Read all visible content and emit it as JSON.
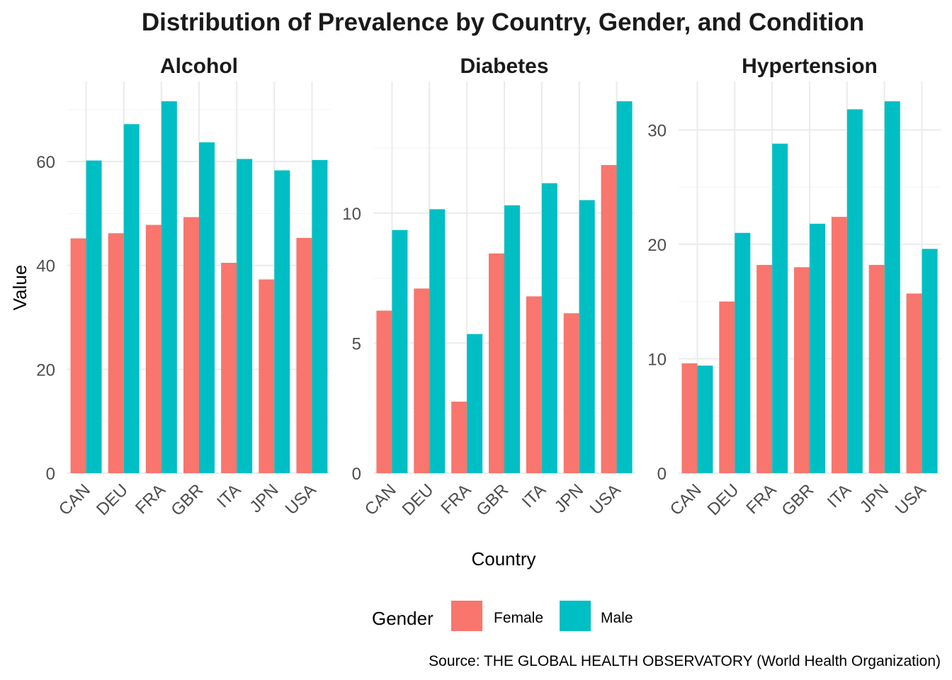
{
  "chart_data": {
    "type": "bar",
    "title": "Distribution of Prevalence by Country, Gender, and Condition",
    "xlabel": "Country",
    "ylabel": "Value",
    "caption": "Source: THE GLOBAL HEALTH OBSERVATORY (World Health Organization)",
    "categories": [
      "CAN",
      "DEU",
      "FRA",
      "GBR",
      "ITA",
      "JPN",
      "USA"
    ],
    "legend": {
      "title": "Gender",
      "position": "bottom",
      "entries": [
        {
          "name": "Female",
          "color": "#F8766D"
        },
        {
          "name": "Male",
          "color": "#00BFC4"
        }
      ]
    },
    "grid": true,
    "panels": [
      {
        "title": "Alcohol",
        "ylim": [
          0,
          72
        ],
        "yticks": [
          0,
          20,
          40,
          60
        ],
        "series": [
          {
            "name": "Female",
            "values": [
              45.2,
              46.2,
              47.8,
              49.3,
              40.5,
              37.3,
              45.3
            ]
          },
          {
            "name": "Male",
            "values": [
              60.2,
              67.2,
              71.6,
              63.7,
              60.5,
              58.3,
              60.3
            ]
          }
        ]
      },
      {
        "title": "Diabetes",
        "ylim": [
          0,
          14.3
        ],
        "yticks": [
          0,
          5,
          10
        ],
        "series": [
          {
            "name": "Female",
            "values": [
              6.25,
              7.1,
              2.75,
              8.45,
              6.8,
              6.15,
              11.85
            ]
          },
          {
            "name": "Male",
            "values": [
              9.35,
              10.15,
              5.35,
              10.3,
              11.15,
              10.5,
              14.3
            ]
          }
        ]
      },
      {
        "title": "Hypertension",
        "ylim": [
          0,
          32.5
        ],
        "yticks": [
          0,
          10,
          20,
          30
        ],
        "series": [
          {
            "name": "Female",
            "values": [
              9.6,
              15.0,
              18.2,
              18.0,
              22.4,
              18.2,
              15.7
            ]
          },
          {
            "name": "Male",
            "values": [
              9.4,
              21.0,
              28.8,
              21.8,
              31.8,
              32.5,
              19.6
            ]
          }
        ]
      }
    ]
  }
}
